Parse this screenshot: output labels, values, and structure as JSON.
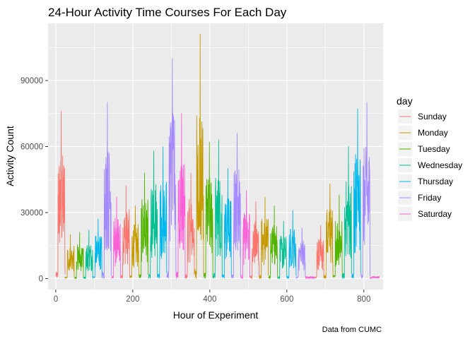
{
  "chart_data": {
    "type": "line",
    "title": "24-Hour Activity Time Courses For Each Day",
    "xlabel": "Hour of Experiment",
    "ylabel": "Activity Count",
    "caption": "Data from CUMC",
    "xlim": [
      -20,
      850
    ],
    "ylim": [
      -5000,
      116000
    ],
    "x_ticks": [
      0,
      200,
      400,
      600,
      800
    ],
    "x_tick_labels": [
      "0",
      "200",
      "400",
      "600",
      "800"
    ],
    "y_ticks": [
      0,
      30000,
      60000,
      90000
    ],
    "y_tick_labels": [
      "0",
      "30000",
      "60000",
      "90000"
    ],
    "grid": true,
    "legend": {
      "title": "day",
      "position": "right"
    },
    "series": [
      {
        "name": "Sunday",
        "color": "#F8766D",
        "days": [
          0,
          7,
          14,
          21,
          28
        ],
        "peaks": [
          76000,
          42000,
          48000,
          35000,
          24000
        ]
      },
      {
        "name": "Monday",
        "color": "#C49A00",
        "days": [
          1,
          8,
          15,
          22,
          29
        ],
        "peaks": [
          20000,
          33000,
          111000,
          37000,
          43000
        ]
      },
      {
        "name": "Tuesday",
        "color": "#53B400",
        "days": [
          2,
          9,
          16,
          23,
          30
        ],
        "peaks": [
          21000,
          48000,
          62000,
          33000,
          38000
        ]
      },
      {
        "name": "Wednesday",
        "color": "#00C094",
        "days": [
          3,
          10,
          17,
          24,
          31
        ],
        "peaks": [
          22000,
          58000,
          63000,
          26000,
          60000
        ]
      },
      {
        "name": "Thursday",
        "color": "#00B6EB",
        "days": [
          4,
          11,
          18,
          25,
          32
        ],
        "peaks": [
          27000,
          60000,
          50000,
          31000,
          77000
        ]
      },
      {
        "name": "Friday",
        "color": "#A58AFF",
        "days": [
          5,
          12,
          19,
          26,
          33
        ],
        "peaks": [
          80000,
          100000,
          66000,
          23000,
          80000
        ]
      },
      {
        "name": "Saturday",
        "color": "#FB61D7",
        "days": [
          6,
          13,
          20,
          27,
          34
        ],
        "peaks": [
          37000,
          75000,
          40000,
          1000,
          1000
        ]
      }
    ]
  }
}
